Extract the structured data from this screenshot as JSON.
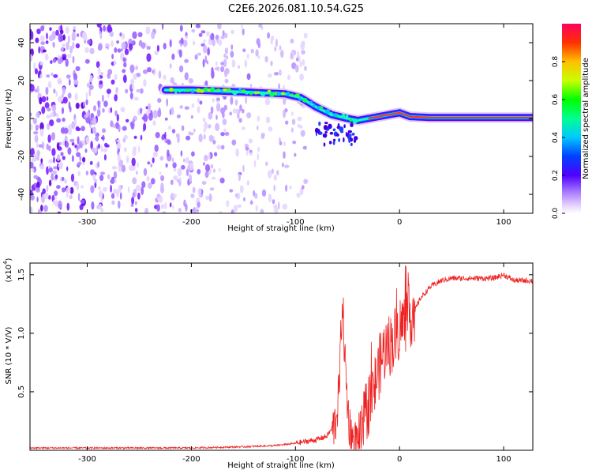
{
  "title": "C2E6.2026.081.10.54.G25",
  "chart_data": [
    {
      "type": "heatmap",
      "name": "spectrogram",
      "xlabel": "Height of straight line (km)",
      "ylabel": "Frequency (Hz)",
      "xlim": [
        -355,
        128
      ],
      "ylim": [
        -50,
        50
      ],
      "x_ticks": [
        -300,
        -200,
        -100,
        0,
        100
      ],
      "x_tick_labels": [
        "-300",
        "-200",
        "-100",
        "0",
        "100"
      ],
      "y_ticks": [
        -40,
        -20,
        0,
        20,
        40
      ],
      "y_tick_labels": [
        "-40",
        "-20",
        "0",
        "20",
        "40"
      ],
      "ridge": {
        "x": [
          -225,
          -200,
          -150,
          -110,
          -95,
          -80,
          -65,
          -50,
          -40,
          -30,
          -20,
          -10,
          0,
          10,
          30,
          60,
          100,
          128
        ],
        "frequency": [
          15,
          15,
          14,
          13,
          11,
          6,
          2,
          0,
          -1,
          0,
          1,
          2,
          3,
          1,
          0.5,
          0.5,
          0.5,
          0.5
        ]
      },
      "noise_region_x": [
        -355,
        -90
      ],
      "colorbar": {
        "label": "Normalized spectral amplitude",
        "range": [
          0,
          1
        ],
        "ticks": [
          0.0,
          0.2,
          0.4,
          0.6,
          0.8
        ],
        "tick_labels": [
          "0.0",
          "0.2",
          "0.4",
          "0.6",
          "0.8"
        ],
        "colors": [
          "#ffffff",
          "#e0c8ff",
          "#a070ff",
          "#6a00ff",
          "#0000ff",
          "#00c8ff",
          "#00ffa0",
          "#00ff00",
          "#c8ff00",
          "#ffc800",
          "#ff4000",
          "#ff0050"
        ]
      }
    },
    {
      "type": "line",
      "name": "snr",
      "xlabel": "Height of straight line (km)",
      "ylabel": "SNR (10 * V/V)",
      "scale_label": "(x10",
      "scale_exp": "4",
      "scale_close": ")",
      "xlim": [
        -355,
        128
      ],
      "ylim": [
        0,
        1.6
      ],
      "x_ticks": [
        -300,
        -200,
        -100,
        0,
        100
      ],
      "x_tick_labels": [
        "-300",
        "-200",
        "-100",
        "0",
        "100"
      ],
      "y_ticks": [
        0.5,
        1.0,
        1.5
      ],
      "y_tick_labels": [
        "0.5",
        "1.0",
        "1.5"
      ],
      "series": [
        {
          "name": "SNR",
          "color": "#ee2222",
          "x": [
            -355,
            -300,
            -250,
            -200,
            -150,
            -120,
            -100,
            -80,
            -70,
            -62,
            -58,
            -55,
            -52,
            -50,
            -48,
            -45,
            -42,
            -38,
            -35,
            -30,
            -25,
            -20,
            -15,
            -10,
            -5,
            0,
            5,
            10,
            15,
            20,
            25,
            30,
            40,
            50,
            70,
            90,
            100,
            110,
            128
          ],
          "y": [
            0.02,
            0.02,
            0.02,
            0.02,
            0.03,
            0.04,
            0.06,
            0.09,
            0.12,
            0.22,
            0.5,
            1.3,
            0.7,
            0.4,
            0.2,
            0.1,
            0.05,
            0.05,
            0.2,
            0.4,
            0.5,
            0.7,
            0.85,
            0.9,
            0.95,
            1.05,
            1.1,
            1.15,
            1.2,
            1.3,
            1.35,
            1.4,
            1.45,
            1.47,
            1.47,
            1.47,
            1.5,
            1.45,
            1.45
          ]
        }
      ]
    }
  ]
}
